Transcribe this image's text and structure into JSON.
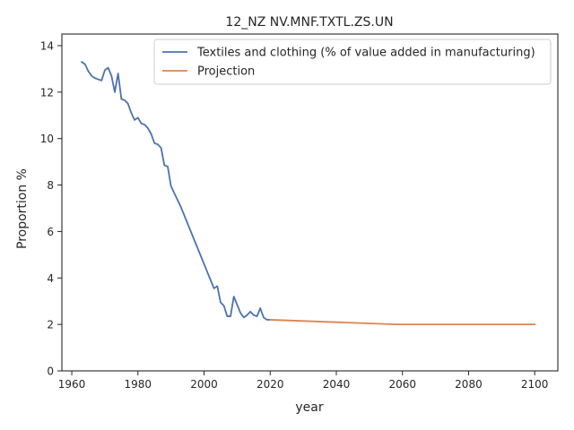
{
  "chart_data": {
    "type": "line",
    "title": "12_NZ NV.MNF.TXTL.ZS.UN",
    "xlabel": "year",
    "ylabel": "Proportion %",
    "xlim": [
      1957,
      2107
    ],
    "ylim": [
      0,
      14.5
    ],
    "xticks": [
      1960,
      1980,
      2000,
      2020,
      2040,
      2060,
      2080,
      2100
    ],
    "yticks": [
      0,
      2,
      4,
      6,
      8,
      10,
      12,
      14
    ],
    "grid": false,
    "legend_position": "upper right",
    "series": [
      {
        "name": "Textiles and clothing (% of value added in manufacturing)",
        "color": "#4c72b0",
        "x": [
          1963,
          1964,
          1965,
          1966,
          1967,
          1968,
          1969,
          1970,
          1971,
          1972,
          1973,
          1974,
          1975,
          1976,
          1977,
          1978,
          1979,
          1980,
          1981,
          1982,
          1983,
          1984,
          1985,
          1986,
          1987,
          1988,
          1989,
          1990,
          1991,
          1992,
          1993,
          1994,
          1995,
          1996,
          1997,
          1998,
          1999,
          2000,
          2001,
          2002,
          2003,
          2004,
          2005,
          2006,
          2007,
          2008,
          2009,
          2010,
          2011,
          2012,
          2013,
          2014,
          2015,
          2016,
          2017,
          2018,
          2019,
          2020
        ],
        "y": [
          13.3,
          13.2,
          12.9,
          12.7,
          12.6,
          12.55,
          12.5,
          12.95,
          13.05,
          12.7,
          12.0,
          12.8,
          11.7,
          11.65,
          11.5,
          11.1,
          10.8,
          10.9,
          10.65,
          10.6,
          10.45,
          10.2,
          9.8,
          9.75,
          9.6,
          8.85,
          8.8,
          7.95,
          7.65,
          7.35,
          7.05,
          6.7,
          6.35,
          6.0,
          5.65,
          5.3,
          4.95,
          4.6,
          4.25,
          3.9,
          3.55,
          3.65,
          2.95,
          2.8,
          2.35,
          2.35,
          3.2,
          2.85,
          2.5,
          2.3,
          2.4,
          2.55,
          2.4,
          2.35,
          2.7,
          2.3,
          2.2,
          2.2
        ]
      },
      {
        "name": "Projection",
        "color": "#dd8452",
        "x": [
          2020,
          2058,
          2100
        ],
        "y": [
          2.2,
          2.0,
          2.0
        ]
      }
    ]
  }
}
